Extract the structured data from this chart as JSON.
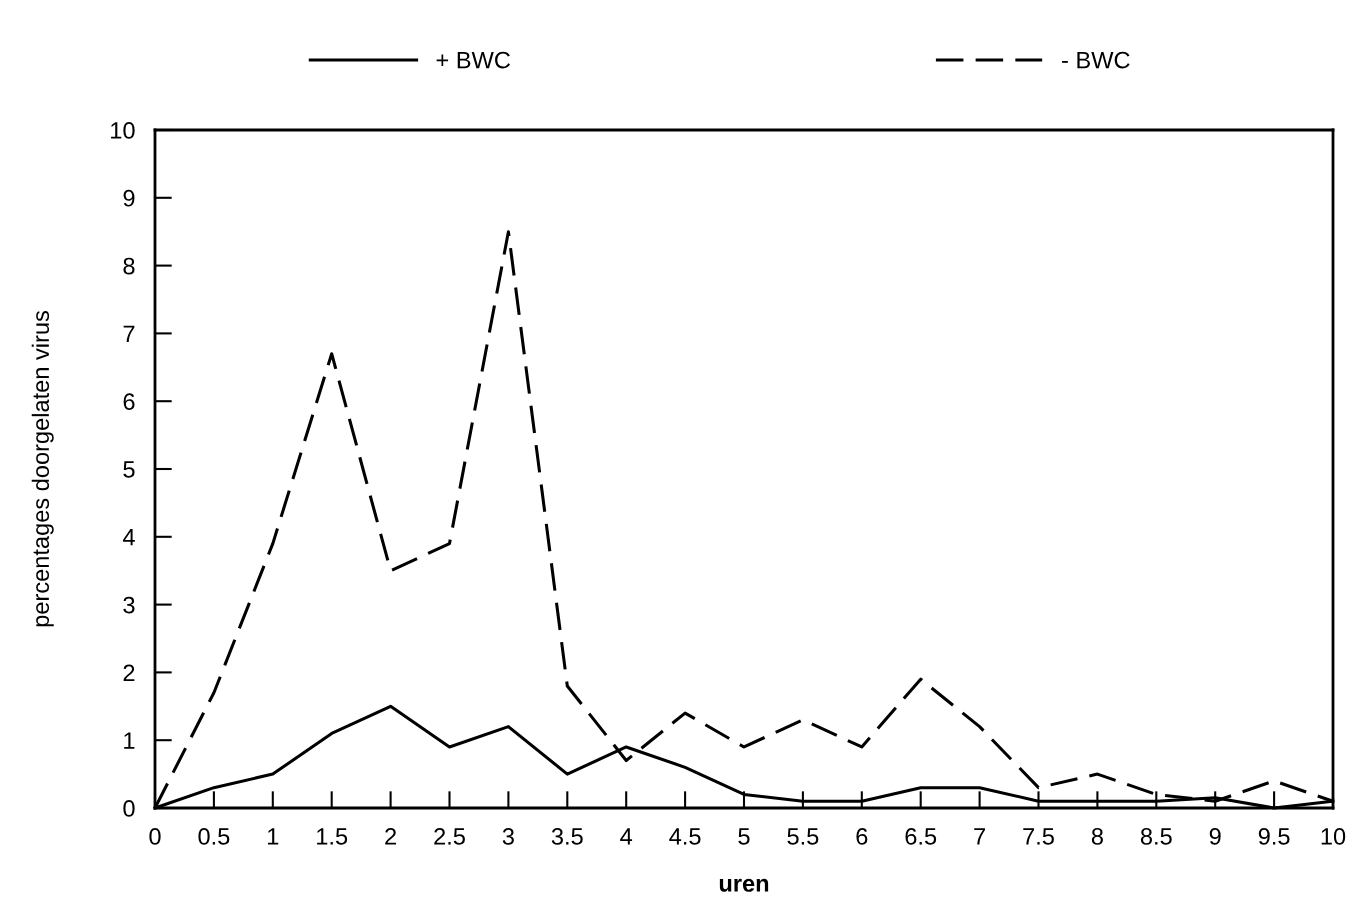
{
  "chart_data": {
    "type": "line",
    "xlabel": "uren",
    "ylabel": "percentages doorgelaten virus",
    "x": [
      0,
      0.5,
      1,
      1.5,
      2,
      2.5,
      3,
      3.5,
      4,
      4.5,
      5,
      5.5,
      6,
      6.5,
      7,
      7.5,
      8,
      8.5,
      9,
      9.5,
      10
    ],
    "series": [
      {
        "name": "+ BWC",
        "color": "#000000",
        "line_style": "solid",
        "values": [
          0,
          0.3,
          0.5,
          1.1,
          1.5,
          0.9,
          1.2,
          0.5,
          0.9,
          0.6,
          0.2,
          0.1,
          0.1,
          0.3,
          0.3,
          0.1,
          0.1,
          0.1,
          0.15,
          0,
          0.1
        ]
      },
      {
        "name": "- BWC",
        "color": "#000000",
        "line_style": "dashed",
        "values": [
          0,
          1.7,
          3.9,
          6.7,
          3.5,
          3.9,
          8.5,
          1.8,
          0.7,
          1.4,
          0.9,
          1.3,
          0.9,
          1.9,
          1.2,
          0.3,
          0.5,
          0.2,
          0.1,
          0.4,
          0.1
        ]
      }
    ],
    "xlim": [
      0,
      10
    ],
    "xticks": [
      0,
      0.5,
      1,
      1.5,
      2,
      2.5,
      3,
      3.5,
      4,
      4.5,
      5,
      5.5,
      6,
      6.5,
      7,
      7.5,
      8,
      8.5,
      9,
      9.5,
      10
    ],
    "ylim": [
      0,
      10
    ],
    "yticks": [
      0,
      1,
      2,
      3,
      4,
      5,
      6,
      7,
      8,
      9,
      10
    ],
    "grid": false,
    "legend": "top",
    "marker": "none"
  }
}
